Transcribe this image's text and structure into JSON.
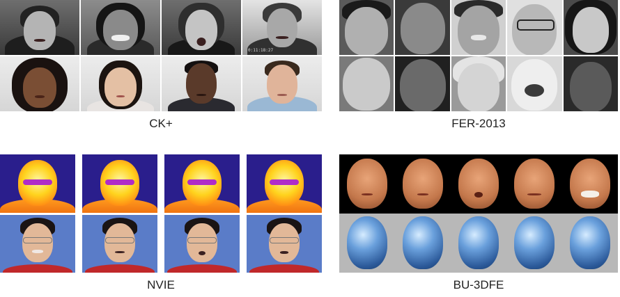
{
  "datasets": [
    {
      "id": "ck",
      "caption": "CK+",
      "overlay_text": "0:11:18:27"
    },
    {
      "id": "fer",
      "caption": "FER-2013"
    },
    {
      "id": "nvie",
      "caption": "NVIE"
    },
    {
      "id": "bu",
      "caption": "BU-3DFE"
    }
  ],
  "colors": {
    "thermal_background": "#2a1e8c",
    "thermal_hot": "#ffd31e",
    "visible_background": "#5a7cc8",
    "bu_texture_background": "#000000",
    "bu_mesh_background": "#b8b8b8",
    "bu_mesh_face": "#6aa0dc"
  }
}
